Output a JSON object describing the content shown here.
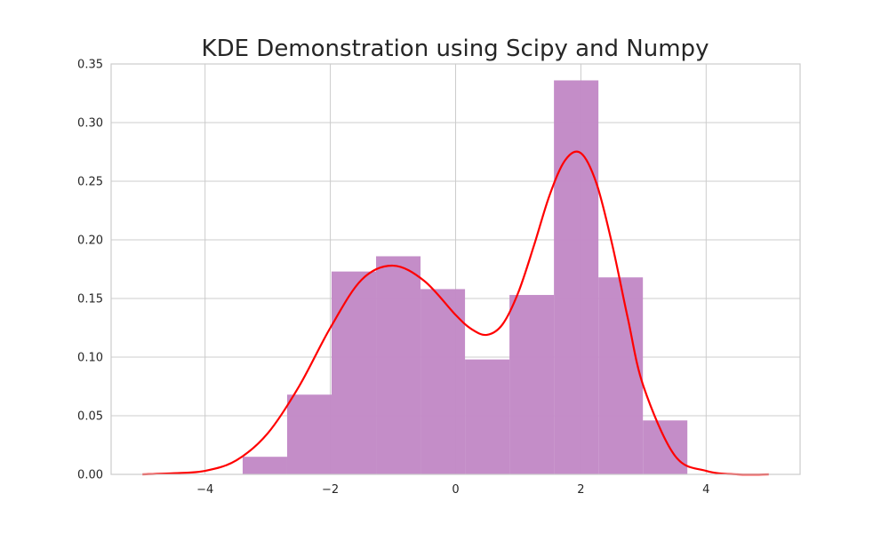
{
  "chart_data": {
    "type": "bar",
    "title": "KDE Demonstration using Scipy and Numpy",
    "xlabel": "",
    "ylabel": "",
    "xlim": [
      -5.5,
      5.5
    ],
    "ylim": [
      0,
      0.35
    ],
    "x_ticks": [
      -4,
      -2,
      0,
      2,
      4
    ],
    "x_tick_labels": [
      "−4",
      "−2",
      "0",
      "2",
      "4"
    ],
    "y_ticks": [
      0.0,
      0.05,
      0.1,
      0.15,
      0.2,
      0.25,
      0.3,
      0.35
    ],
    "y_tick_labels": [
      "0.00",
      "0.05",
      "0.10",
      "0.15",
      "0.20",
      "0.25",
      "0.30",
      "0.35"
    ],
    "grid": true,
    "histogram": {
      "bin_edges": [
        -3.4,
        -2.69,
        -1.98,
        -1.27,
        -0.56,
        0.15,
        0.86,
        1.57,
        2.28,
        2.99,
        3.7
      ],
      "values": [
        0.015,
        0.068,
        0.173,
        0.186,
        0.158,
        0.098,
        0.153,
        0.336,
        0.168,
        0.046
      ],
      "color": "#c38bc7"
    },
    "kde_curve": {
      "color": "#ff0000",
      "x": [
        -5.0,
        -4.5,
        -4.0,
        -3.5,
        -3.0,
        -2.5,
        -2.0,
        -1.5,
        -1.0,
        -0.5,
        0.0,
        0.25,
        0.5,
        0.75,
        1.0,
        1.25,
        1.5,
        1.75,
        2.0,
        2.25,
        2.5,
        2.75,
        3.0,
        3.5,
        4.0,
        4.5,
        5.0
      ],
      "y": [
        0.0,
        0.001,
        0.003,
        0.012,
        0.035,
        0.075,
        0.125,
        0.166,
        0.178,
        0.165,
        0.136,
        0.124,
        0.119,
        0.128,
        0.155,
        0.195,
        0.238,
        0.268,
        0.274,
        0.248,
        0.196,
        0.133,
        0.075,
        0.016,
        0.003,
        0.0,
        0.0
      ]
    }
  }
}
